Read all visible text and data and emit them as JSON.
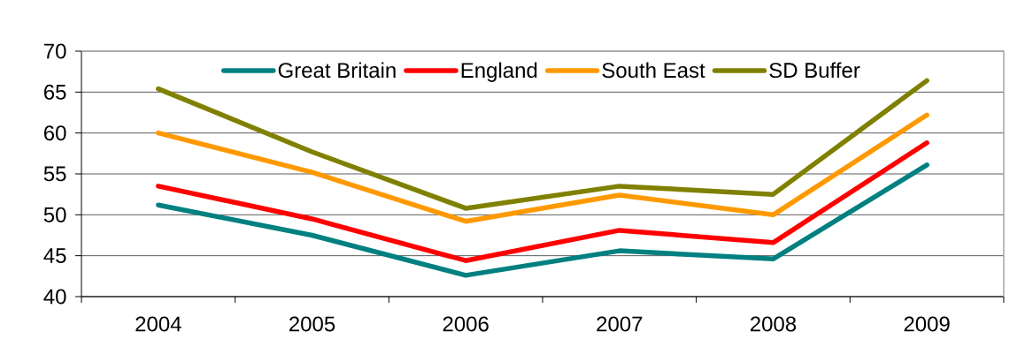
{
  "chart_data": {
    "type": "line",
    "categories": [
      "2004",
      "2005",
      "2006",
      "2007",
      "2008",
      "2009"
    ],
    "series": [
      {
        "name": "Great Britain",
        "color": "#008080",
        "values": [
          51.2,
          47.5,
          42.6,
          45.6,
          44.6,
          56.1
        ]
      },
      {
        "name": "England",
        "color": "#ff0000",
        "values": [
          53.5,
          49.5,
          44.4,
          48.1,
          46.6,
          58.8
        ]
      },
      {
        "name": "South East",
        "color": "#ff9900",
        "values": [
          60.0,
          55.2,
          49.2,
          52.4,
          50.0,
          62.2
        ]
      },
      {
        "name": "SD Buffer",
        "color": "#808000",
        "values": [
          65.4,
          57.7,
          50.8,
          53.5,
          52.5,
          66.4
        ]
      }
    ],
    "ylim": [
      40,
      70
    ],
    "yticks": [
      40,
      45,
      50,
      55,
      60,
      65,
      70
    ],
    "grid": "y",
    "legend": "top",
    "marker": "none",
    "line_style": "solid"
  }
}
